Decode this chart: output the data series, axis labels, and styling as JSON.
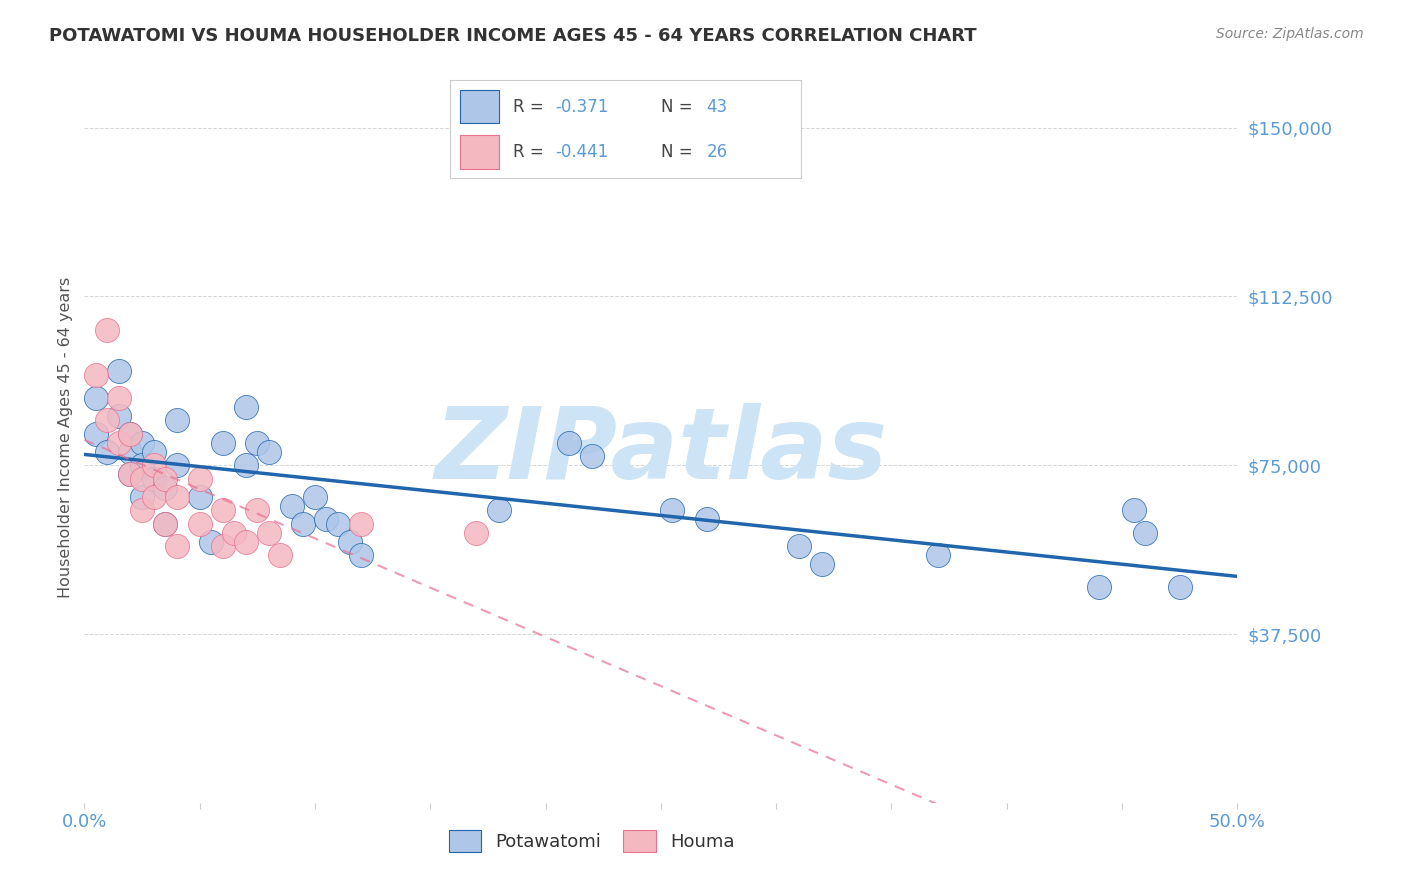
{
  "title": "POTAWATOMI VS HOUMA HOUSEHOLDER INCOME AGES 45 - 64 YEARS CORRELATION CHART",
  "source": "Source: ZipAtlas.com",
  "ylabel": "Householder Income Ages 45 - 64 years",
  "legend_label1": "Potawatomi",
  "legend_label2": "Houma",
  "xlim": [
    0.0,
    0.5
  ],
  "ylim": [
    0,
    162500
  ],
  "yticks": [
    0,
    37500,
    75000,
    112500,
    150000
  ],
  "ytick_labels": [
    "",
    "$37,500",
    "$75,000",
    "$112,500",
    "$150,000"
  ],
  "xticks": [
    0.0,
    0.05,
    0.1,
    0.15,
    0.2,
    0.25,
    0.3,
    0.35,
    0.4,
    0.45,
    0.5
  ],
  "xtick_labels": [
    "0.0%",
    "",
    "",
    "",
    "",
    "",
    "",
    "",
    "",
    "",
    "50.0%"
  ],
  "potawatomi_x": [
    0.005,
    0.005,
    0.01,
    0.015,
    0.015,
    0.02,
    0.02,
    0.02,
    0.025,
    0.025,
    0.025,
    0.03,
    0.03,
    0.035,
    0.035,
    0.04,
    0.04,
    0.05,
    0.055,
    0.06,
    0.07,
    0.07,
    0.075,
    0.08,
    0.09,
    0.095,
    0.1,
    0.105,
    0.11,
    0.115,
    0.12,
    0.18,
    0.21,
    0.22,
    0.255,
    0.27,
    0.31,
    0.32,
    0.37,
    0.44,
    0.455,
    0.46,
    0.475
  ],
  "potawatomi_y": [
    90000,
    82000,
    78000,
    96000,
    86000,
    82000,
    78000,
    73000,
    80000,
    75000,
    68000,
    78000,
    72000,
    70000,
    62000,
    85000,
    75000,
    68000,
    58000,
    80000,
    88000,
    75000,
    80000,
    78000,
    66000,
    62000,
    68000,
    63000,
    62000,
    58000,
    55000,
    65000,
    80000,
    77000,
    65000,
    63000,
    57000,
    53000,
    55000,
    48000,
    65000,
    60000,
    48000
  ],
  "houma_x": [
    0.005,
    0.01,
    0.01,
    0.015,
    0.015,
    0.02,
    0.02,
    0.025,
    0.025,
    0.03,
    0.03,
    0.035,
    0.035,
    0.04,
    0.04,
    0.05,
    0.05,
    0.06,
    0.06,
    0.065,
    0.07,
    0.075,
    0.08,
    0.085,
    0.12,
    0.17
  ],
  "houma_y": [
    95000,
    105000,
    85000,
    90000,
    80000,
    82000,
    73000,
    72000,
    65000,
    75000,
    68000,
    72000,
    62000,
    68000,
    57000,
    72000,
    62000,
    65000,
    57000,
    60000,
    58000,
    65000,
    60000,
    55000,
    62000,
    60000
  ],
  "potawatomi_color": "#aec6e8",
  "houma_color": "#f4b8c1",
  "potawatomi_line_color": "#2166ac",
  "houma_line_color": "#e87090",
  "background_color": "#ffffff",
  "watermark": "ZIPatlas",
  "watermark_color": "#cce4f5",
  "tick_color": "#5b9bd5",
  "title_color": "#333333",
  "source_color": "#888888",
  "ylabel_color": "#555555"
}
